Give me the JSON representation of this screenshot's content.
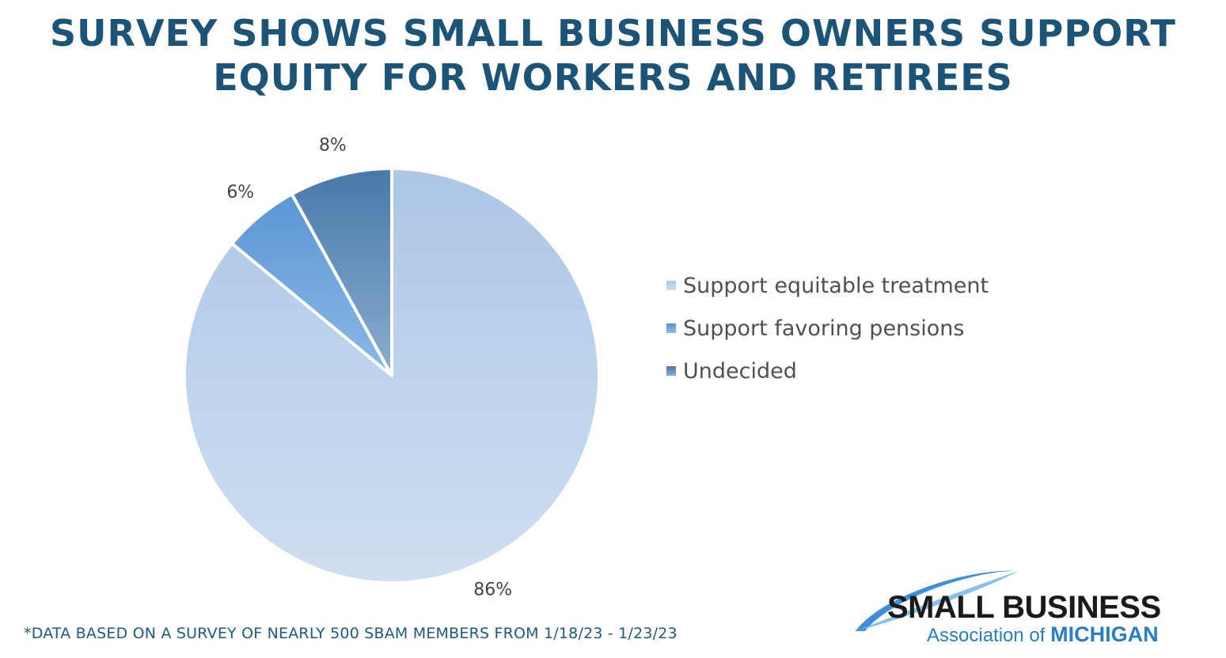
{
  "title": {
    "line1": "SURVEY SHOWS SMALL BUSINESS OWNERS SUPPORT",
    "line2": "EQUITY FOR WORKERS AND RETIREES"
  },
  "chart_data": {
    "type": "pie",
    "title": "SURVEY SHOWS SMALL BUSINESS OWNERS SUPPORT EQUITY FOR WORKERS AND RETIREES",
    "slices": [
      {
        "name": "Support equitable treatment",
        "value": 86,
        "label": "86%",
        "color": "#c2d6ee"
      },
      {
        "name": "Support favoring pensions",
        "value": 6,
        "label": "6%",
        "color": "#6fa3d8"
      },
      {
        "name": "Undecided",
        "value": 8,
        "label": "8%",
        "color": "#5d88b6"
      }
    ],
    "legend_position": "right"
  },
  "footnote": "*DATA BASED ON A SURVEY OF NEARLY 500 SBAM MEMBERS FROM 1/18/23 - 1/23/23",
  "logo": {
    "line1": "SMALL BUSINESS",
    "line2_prefix": "Association of ",
    "line2_emphasis": "MICHIGAN"
  }
}
